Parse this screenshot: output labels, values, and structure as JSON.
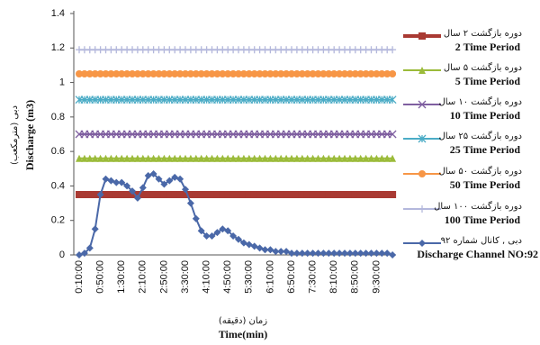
{
  "chart_data": {
    "type": "line",
    "y_label": "Discharge (m3)",
    "y_label_fa": "دبی (مترمکعب)",
    "x_label": "Time(min)",
    "x_label_fa": "زمان (دقیقه)",
    "ylim": [
      0,
      1.4
    ],
    "yticks": [
      0,
      0.2,
      0.4,
      0.6,
      0.8,
      1,
      1.2,
      1.4
    ],
    "categories": [
      "0:10:00",
      null,
      null,
      null,
      "0:50:00",
      null,
      null,
      null,
      "1:30:00",
      null,
      null,
      null,
      "2:10:00",
      null,
      null,
      null,
      "2:50:00",
      null,
      null,
      null,
      "3:30:00",
      null,
      null,
      null,
      "4:10:00",
      null,
      null,
      null,
      "4:50:00",
      null,
      null,
      null,
      "5:30:00",
      null,
      null,
      null,
      "6:10:00",
      null,
      null,
      null,
      "6:50:00",
      null,
      null,
      null,
      "7:30:00",
      null,
      null,
      null,
      "8:10:00",
      null,
      null,
      null,
      "8:50:00",
      null,
      null,
      null,
      "9:30:00",
      null,
      null,
      null
    ],
    "series": [
      {
        "name": "2 Time Period",
        "name_fa": "دوره بازگشت ۲ سال",
        "color": "#a93a33",
        "marker": "square",
        "values": [
          0.35,
          0.35,
          0.35,
          0.35,
          0.35,
          0.35,
          0.35,
          0.35,
          0.35,
          0.35,
          0.35,
          0.35,
          0.35,
          0.35,
          0.35,
          0.35,
          0.35,
          0.35,
          0.35,
          0.35,
          0.35,
          0.35,
          0.35,
          0.35,
          0.35,
          0.35,
          0.35,
          0.35,
          0.35,
          0.35,
          0.35,
          0.35,
          0.35,
          0.35,
          0.35,
          0.35,
          0.35,
          0.35,
          0.35,
          0.35,
          0.35,
          0.35,
          0.35,
          0.35,
          0.35,
          0.35,
          0.35,
          0.35,
          0.35,
          0.35,
          0.35,
          0.35,
          0.35,
          0.35,
          0.35,
          0.35,
          0.35,
          0.35,
          0.35,
          0.35
        ]
      },
      {
        "name": "5 Time Period",
        "name_fa": "دوره بازگشت ۵ سال",
        "color": "#9bbb3a",
        "marker": "triangle",
        "values": [
          0.56,
          0.56,
          0.56,
          0.56,
          0.56,
          0.56,
          0.56,
          0.56,
          0.56,
          0.56,
          0.56,
          0.56,
          0.56,
          0.56,
          0.56,
          0.56,
          0.56,
          0.56,
          0.56,
          0.56,
          0.56,
          0.56,
          0.56,
          0.56,
          0.56,
          0.56,
          0.56,
          0.56,
          0.56,
          0.56,
          0.56,
          0.56,
          0.56,
          0.56,
          0.56,
          0.56,
          0.56,
          0.56,
          0.56,
          0.56,
          0.56,
          0.56,
          0.56,
          0.56,
          0.56,
          0.56,
          0.56,
          0.56,
          0.56,
          0.56,
          0.56,
          0.56,
          0.56,
          0.56,
          0.56,
          0.56,
          0.56,
          0.56,
          0.56,
          0.56
        ]
      },
      {
        "name": "10 Time Period",
        "name_fa": "دوره بازگشت ۱۰ سال",
        "color": "#7f5fa0",
        "marker": "x",
        "values": [
          0.7,
          0.7,
          0.7,
          0.7,
          0.7,
          0.7,
          0.7,
          0.7,
          0.7,
          0.7,
          0.7,
          0.7,
          0.7,
          0.7,
          0.7,
          0.7,
          0.7,
          0.7,
          0.7,
          0.7,
          0.7,
          0.7,
          0.7,
          0.7,
          0.7,
          0.7,
          0.7,
          0.7,
          0.7,
          0.7,
          0.7,
          0.7,
          0.7,
          0.7,
          0.7,
          0.7,
          0.7,
          0.7,
          0.7,
          0.7,
          0.7,
          0.7,
          0.7,
          0.7,
          0.7,
          0.7,
          0.7,
          0.7,
          0.7,
          0.7,
          0.7,
          0.7,
          0.7,
          0.7,
          0.7,
          0.7,
          0.7,
          0.7,
          0.7,
          0.7
        ]
      },
      {
        "name": "25 Time Period",
        "name_fa": "دوره بازگشت ۲۵ سال",
        "color": "#4bacc6",
        "marker": "star",
        "values": [
          0.9,
          0.9,
          0.9,
          0.9,
          0.9,
          0.9,
          0.9,
          0.9,
          0.9,
          0.9,
          0.9,
          0.9,
          0.9,
          0.9,
          0.9,
          0.9,
          0.9,
          0.9,
          0.9,
          0.9,
          0.9,
          0.9,
          0.9,
          0.9,
          0.9,
          0.9,
          0.9,
          0.9,
          0.9,
          0.9,
          0.9,
          0.9,
          0.9,
          0.9,
          0.9,
          0.9,
          0.9,
          0.9,
          0.9,
          0.9,
          0.9,
          0.9,
          0.9,
          0.9,
          0.9,
          0.9,
          0.9,
          0.9,
          0.9,
          0.9,
          0.9,
          0.9,
          0.9,
          0.9,
          0.9,
          0.9,
          0.9,
          0.9,
          0.9,
          0.9
        ]
      },
      {
        "name": "50 Time Period",
        "name_fa": "دوره بازگشت ۵۰ سال",
        "color": "#f79646",
        "marker": "circle",
        "values": [
          1.05,
          1.05,
          1.05,
          1.05,
          1.05,
          1.05,
          1.05,
          1.05,
          1.05,
          1.05,
          1.05,
          1.05,
          1.05,
          1.05,
          1.05,
          1.05,
          1.05,
          1.05,
          1.05,
          1.05,
          1.05,
          1.05,
          1.05,
          1.05,
          1.05,
          1.05,
          1.05,
          1.05,
          1.05,
          1.05,
          1.05,
          1.05,
          1.05,
          1.05,
          1.05,
          1.05,
          1.05,
          1.05,
          1.05,
          1.05,
          1.05,
          1.05,
          1.05,
          1.05,
          1.05,
          1.05,
          1.05,
          1.05,
          1.05,
          1.05,
          1.05,
          1.05,
          1.05,
          1.05,
          1.05,
          1.05,
          1.05,
          1.05,
          1.05,
          1.05
        ]
      },
      {
        "name": "100 Time Period",
        "name_fa": "دوره بازگشت ۱۰۰ سال",
        "color": "#b4b8dc",
        "marker": "plus",
        "values": [
          1.19,
          1.19,
          1.19,
          1.19,
          1.19,
          1.19,
          1.19,
          1.19,
          1.19,
          1.19,
          1.19,
          1.19,
          1.19,
          1.19,
          1.19,
          1.19,
          1.19,
          1.19,
          1.19,
          1.19,
          1.19,
          1.19,
          1.19,
          1.19,
          1.19,
          1.19,
          1.19,
          1.19,
          1.19,
          1.19,
          1.19,
          1.19,
          1.19,
          1.19,
          1.19,
          1.19,
          1.19,
          1.19,
          1.19,
          1.19,
          1.19,
          1.19,
          1.19,
          1.19,
          1.19,
          1.19,
          1.19,
          1.19,
          1.19,
          1.19,
          1.19,
          1.19,
          1.19,
          1.19,
          1.19,
          1.19,
          1.19,
          1.19,
          1.19,
          1.19
        ]
      },
      {
        "name": "Discharge Channel NO:92",
        "name_fa": "دبی , کانال شماره ۹۲",
        "color": "#4a68a8",
        "marker": "diamond",
        "values": [
          0,
          0.01,
          0.04,
          0.15,
          0.35,
          0.44,
          0.43,
          0.42,
          0.42,
          0.4,
          0.37,
          0.33,
          0.39,
          0.46,
          0.47,
          0.44,
          0.41,
          0.43,
          0.45,
          0.44,
          0.38,
          0.3,
          0.21,
          0.14,
          0.11,
          0.11,
          0.13,
          0.15,
          0.14,
          0.11,
          0.09,
          0.07,
          0.06,
          0.05,
          0.04,
          0.03,
          0.03,
          0.02,
          0.02,
          0.02,
          0.01,
          0.01,
          0.01,
          0.01,
          0.01,
          0.01,
          0.01,
          0.01,
          0.01,
          0.01,
          0.01,
          0.01,
          0.01,
          0.01,
          0.01,
          0.01,
          0.01,
          0.01,
          0.01,
          0
        ]
      }
    ]
  }
}
